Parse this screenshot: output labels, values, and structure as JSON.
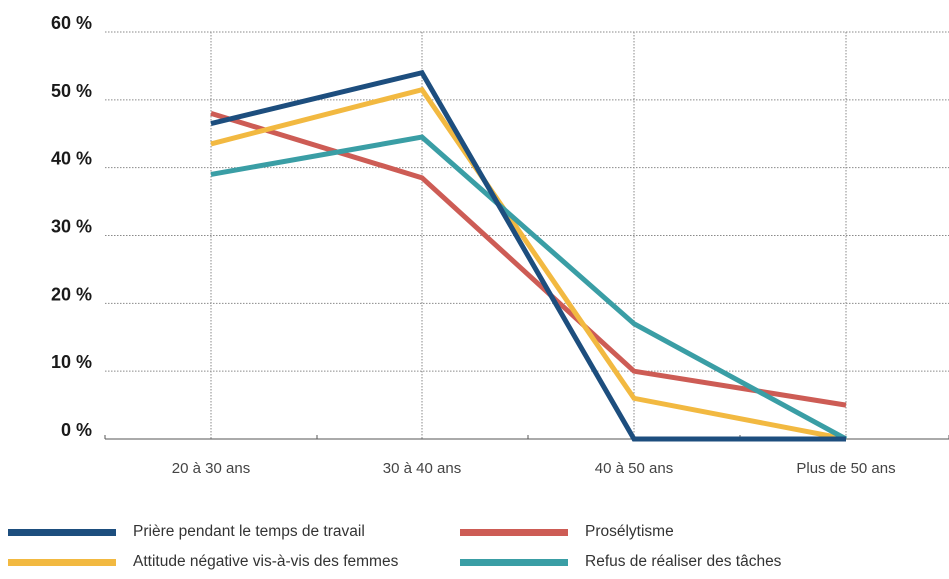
{
  "chart_data": {
    "type": "line",
    "categories": [
      "20 à 30 ans",
      "30 à 40 ans",
      "40 à 50 ans",
      "Plus de 50 ans"
    ],
    "y_ticks": [
      "0 %",
      "10 %",
      "20 %",
      "30 %",
      "40 %",
      "50 %",
      "60 %"
    ],
    "ylim": [
      0,
      60
    ],
    "grid": true,
    "legend_position": "bottom",
    "series": [
      {
        "name": "Prière pendant le temps de travail",
        "color": "#1d4e7e",
        "values": [
          46.5,
          54,
          0,
          0
        ]
      },
      {
        "name": "Prosélytisme",
        "color": "#cd5c55",
        "values": [
          48,
          38.5,
          10,
          5
        ]
      },
      {
        "name": "Attitude négative vis-à-vis des femmes",
        "color": "#f2b941",
        "values": [
          43.5,
          51.5,
          6,
          0
        ]
      },
      {
        "name": "Refus de réaliser des tâches",
        "color": "#3a9ea5",
        "values": [
          39,
          44.5,
          17,
          0
        ]
      }
    ]
  }
}
